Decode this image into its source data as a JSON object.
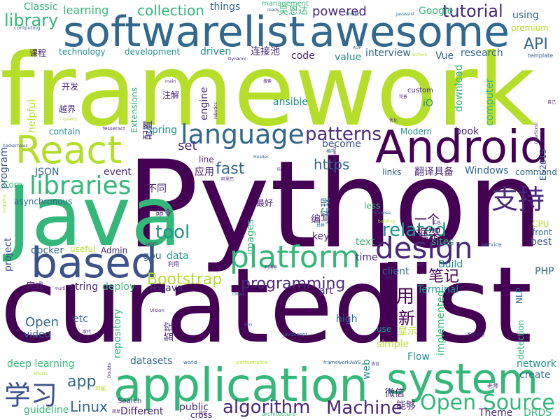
{
  "palette": {
    "dark-purple": "#440154",
    "indigo": "#3b528b",
    "blue": "#31688e",
    "teal": "#21918c",
    "green-teal": "#35b779",
    "green": "#5ec962",
    "lime": "#b5de2b",
    "mid-purple": "#482878"
  },
  "words": [
    {
      "text": "Python"
    },
    {
      "text": "curated"
    },
    {
      "text": "list"
    },
    {
      "text": "framework"
    },
    {
      "text": "Java"
    },
    {
      "text": "Android"
    },
    {
      "text": "softwarelist"
    },
    {
      "text": "awesome"
    },
    {
      "text": "application"
    },
    {
      "text": "system"
    },
    {
      "text": "based"
    },
    {
      "text": "React"
    },
    {
      "text": "platform"
    },
    {
      "text": "language"
    },
    {
      "text": "design"
    },
    {
      "text": "支持"
    },
    {
      "text": "Open Source"
    },
    {
      "text": "libraries"
    },
    {
      "text": "学习"
    },
    {
      "text": "library"
    },
    {
      "text": "tutorial"
    },
    {
      "text": "tool"
    },
    {
      "text": "patterns"
    },
    {
      "text": "related"
    },
    {
      "text": "Bootstrap"
    },
    {
      "text": "programming"
    },
    {
      "text": "algorithm"
    },
    {
      "text": "Machine"
    },
    {
      "text": "collection"
    },
    {
      "text": "使用"
    },
    {
      "text": "刷新"
    },
    {
      "text": "笔记"
    },
    {
      "text": "API"
    },
    {
      "text": "app"
    },
    {
      "text": "fast"
    },
    {
      "text": "https"
    },
    {
      "text": "powered"
    },
    {
      "text": "框架"
    },
    {
      "text": "一个"
    },
    {
      "text": "Linux"
    },
    {
      "text": "Open"
    },
    {
      "text": "learning"
    },
    {
      "text": "deep learning"
    },
    {
      "text": "Classic"
    },
    {
      "text": "set"
    },
    {
      "text": "吴恩达"
    },
    {
      "text": "things"
    },
    {
      "text": "Google"
    },
    {
      "text": "using"
    },
    {
      "text": "premium"
    },
    {
      "text": "technology"
    },
    {
      "text": "development"
    },
    {
      "text": "driven"
    },
    {
      "text": "连接池"
    },
    {
      "text": "code"
    },
    {
      "text": "value"
    },
    {
      "text": "interview"
    },
    {
      "text": "Vue"
    },
    {
      "text": "research"
    },
    {
      "text": "课程"
    },
    {
      "text": "开发"
    },
    {
      "text": "越界"
    },
    {
      "text": "注解"
    },
    {
      "text": "engine"
    },
    {
      "text": "ansible"
    },
    {
      "text": "iO"
    },
    {
      "text": "download"
    },
    {
      "text": "computer"
    },
    {
      "text": "custom"
    },
    {
      "text": "helpful"
    },
    {
      "text": "contain"
    },
    {
      "text": "Spring"
    },
    {
      "text": "配置"
    },
    {
      "text": "Modern"
    },
    {
      "text": "book"
    },
    {
      "text": "become"
    },
    {
      "text": "program"
    },
    {
      "text": "project"
    },
    {
      "text": "JSON"
    },
    {
      "text": "event"
    },
    {
      "text": "应用"
    },
    {
      "text": "links"
    },
    {
      "text": "翻译"
    },
    {
      "text": "具备"
    },
    {
      "text": "Windows"
    },
    {
      "text": "command"
    },
    {
      "text": "ES2015"
    },
    {
      "text": "Core"
    },
    {
      "text": "asynchronous"
    },
    {
      "text": "不同"
    },
    {
      "text": "最好"
    },
    {
      "text": "less"
    },
    {
      "text": "实现"
    },
    {
      "text": "命令"
    },
    {
      "text": "images"
    },
    {
      "text": "编写"
    },
    {
      "text": "key"
    },
    {
      "text": "CPU"
    },
    {
      "text": "front"
    },
    {
      "text": "docker"
    },
    {
      "text": "useful"
    },
    {
      "text": "Admin"
    },
    {
      "text": "gpu"
    },
    {
      "text": "data"
    },
    {
      "text": "text"
    },
    {
      "text": "sites"
    },
    {
      "text": "best"
    },
    {
      "text": "time"
    },
    {
      "text": "client"
    },
    {
      "text": "Build"
    },
    {
      "text": "PHP"
    },
    {
      "text": "RxJava"
    },
    {
      "text": "完成"
    },
    {
      "text": "string"
    },
    {
      "text": "deploy"
    },
    {
      "text": "art"
    },
    {
      "text": "Terminal"
    },
    {
      "text": "NLP"
    },
    {
      "text": "video"
    },
    {
      "text": "etc"
    },
    {
      "text": "监控"
    },
    {
      "text": "repository"
    },
    {
      "text": "high"
    },
    {
      "text": "显示"
    },
    {
      "text": "implemented"
    },
    {
      "text": "detection"
    },
    {
      "text": "use"
    },
    {
      "text": "simple"
    },
    {
      "text": "datasets"
    },
    {
      "text": "Flow"
    },
    {
      "text": "network"
    },
    {
      "text": "create"
    },
    {
      "text": "web"
    },
    {
      "text": "微信"
    },
    {
      "text": "能够"
    },
    {
      "text": "guideline"
    },
    {
      "text": "Different"
    },
    {
      "text": "public"
    },
    {
      "text": "cross"
    },
    {
      "text": "Theme"
    },
    {
      "text": "DRDS"
    },
    {
      "text": "Search"
    },
    {
      "text": "Extensions"
    },
    {
      "text": "management"
    },
    {
      "text": "computing"
    },
    {
      "text": "ready"
    },
    {
      "text": "Footer"
    },
    {
      "text": "Javassist"
    },
    {
      "text": "AOP"
    },
    {
      "text": "template"
    },
    {
      "text": "Dynamic"
    },
    {
      "text": "archive"
    },
    {
      "text": "main"
    },
    {
      "text": "搜索"
    },
    {
      "text": "完善"
    },
    {
      "text": "自己"
    },
    {
      "text": "quality"
    },
    {
      "text": "robotics"
    },
    {
      "text": "Tesseract"
    },
    {
      "text": "优化"
    },
    {
      "text": "OverScroll"
    },
    {
      "text": "hackernews"
    },
    {
      "text": "Header"
    },
    {
      "text": "横向"
    },
    {
      "text": "line"
    },
    {
      "text": "Fir"
    },
    {
      "text": "阿里巴"
    },
    {
      "text": "convolutional"
    },
    {
      "text": "mapping"
    },
    {
      "text": "Propose"
    },
    {
      "text": "building"
    },
    {
      "text": "世界"
    },
    {
      "text": "汇总"
    },
    {
      "text": "service"
    },
    {
      "text": "Learn"
    },
    {
      "text": "利用"
    },
    {
      "text": "利用率"
    },
    {
      "text": "Ng"
    },
    {
      "text": "say"
    },
    {
      "text": "multi"
    },
    {
      "text": "cloud"
    },
    {
      "text": "Vision"
    },
    {
      "text": "SVG"
    },
    {
      "text": "JavaScript"
    },
    {
      "text": "取代"
    },
    {
      "text": "配置管理"
    },
    {
      "text": "world"
    },
    {
      "text": "performance"
    },
    {
      "text": "frameworkAWS"
    },
    {
      "text": "协议"
    },
    {
      "text": "老师"
    },
    {
      "text": "Effects"
    },
    {
      "text": "Doubts"
    },
    {
      "text": "可能"
    },
    {
      "text": "architecture"
    },
    {
      "text": "稳定"
    },
    {
      "text": "简单"
    }
  ]
}
